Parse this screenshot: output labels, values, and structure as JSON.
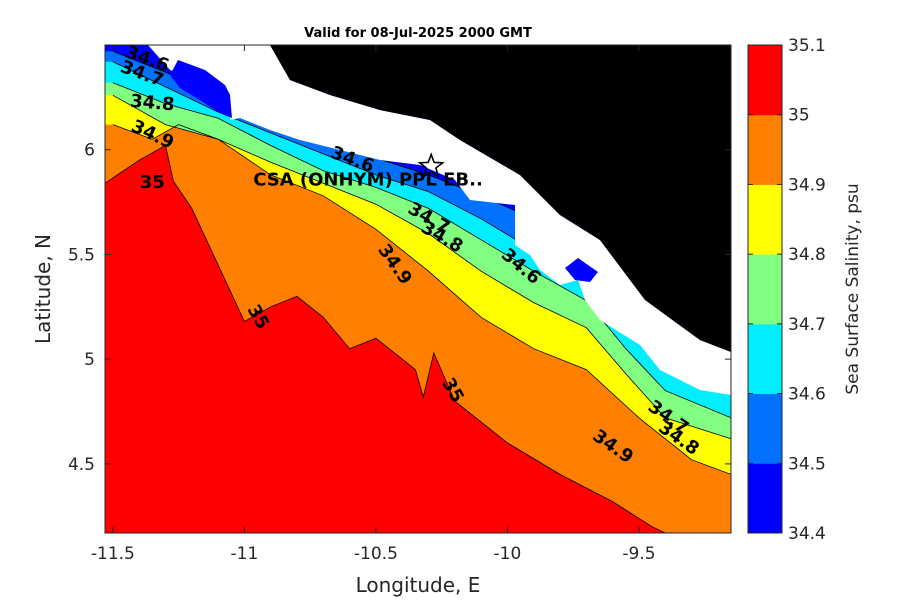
{
  "chart_data": {
    "type": "heatmap",
    "title": "Valid for 08-Jul-2025 2000 GMT",
    "xlabel": "Longitude, E",
    "ylabel": "Latitude, N",
    "xlim": [
      -11.53,
      -9.15
    ],
    "ylim": [
      4.17,
      6.5
    ],
    "x_ticks": [
      -11.5,
      -11,
      -10.5,
      -10,
      -9.5
    ],
    "x_tick_labels": [
      "-11.5",
      "-11",
      "-10.5",
      "-10",
      "-9.5"
    ],
    "y_ticks": [
      4.5,
      5,
      5.5,
      6
    ],
    "y_tick_labels": [
      "4.5",
      "5",
      "5.5",
      "6"
    ],
    "colorbar": {
      "label": "Sea Surface Salinity, psu",
      "levels": [
        34.4,
        34.5,
        34.6,
        34.7,
        34.8,
        34.9,
        35,
        35.1
      ],
      "tick_labels": [
        "34.4",
        "34.5",
        "34.6",
        "34.7",
        "34.8",
        "34.9",
        "35",
        "35.1"
      ],
      "colors": [
        "#0000ff",
        "#0072ff",
        "#00eeff",
        "#80ff80",
        "#ffff00",
        "#ff8000",
        "#ff0000"
      ]
    },
    "land_color": "#000000",
    "nodata_color": "#ffffff",
    "station": {
      "label": "CSA (ONHYM) PPL EB..",
      "lon": -10.29,
      "lat": 5.92,
      "marker": "star-icon"
    },
    "contour_lines": [
      {
        "level": 34.5,
        "points": [
          [
            -11.5,
            6.47
          ],
          [
            -11.3,
            6.37
          ],
          [
            -11.1,
            6.27
          ],
          [
            -10.9,
            6.15
          ],
          [
            -10.7,
            6.05
          ],
          [
            -10.5,
            5.96
          ],
          [
            -10.3,
            5.88
          ],
          [
            -10.1,
            5.78
          ],
          [
            -9.9,
            5.67
          ],
          [
            -9.7,
            5.56
          ],
          [
            -9.5,
            5.35
          ],
          [
            -9.3,
            5.05
          ],
          [
            -9.15,
            4.95
          ]
        ]
      },
      {
        "level": 34.6,
        "points": [
          [
            -11.5,
            6.42
          ],
          [
            -11.3,
            6.3
          ],
          [
            -11.1,
            6.18
          ],
          [
            -10.9,
            6.08
          ],
          [
            -10.7,
            5.98
          ],
          [
            -10.5,
            5.88
          ],
          [
            -10.3,
            5.8
          ],
          [
            -10.1,
            5.67
          ],
          [
            -9.9,
            5.52
          ],
          [
            -9.7,
            5.4
          ],
          [
            -9.55,
            5.2
          ],
          [
            -9.4,
            4.98
          ],
          [
            -9.15,
            4.85
          ]
        ]
      },
      {
        "level": 34.7,
        "points": [
          [
            -11.5,
            6.32
          ],
          [
            -11.3,
            6.22
          ],
          [
            -11.1,
            6.15
          ],
          [
            -10.9,
            6.02
          ],
          [
            -10.7,
            5.9
          ],
          [
            -10.5,
            5.82
          ],
          [
            -10.3,
            5.72
          ],
          [
            -10.1,
            5.57
          ],
          [
            -9.9,
            5.42
          ],
          [
            -9.7,
            5.28
          ],
          [
            -9.55,
            5.05
          ],
          [
            -9.4,
            4.85
          ],
          [
            -9.15,
            4.72
          ]
        ]
      },
      {
        "level": 34.8,
        "points": [
          [
            -11.5,
            6.26
          ],
          [
            -11.3,
            6.12
          ],
          [
            -11.1,
            6.05
          ],
          [
            -10.9,
            5.94
          ],
          [
            -10.7,
            5.84
          ],
          [
            -10.5,
            5.74
          ],
          [
            -10.3,
            5.6
          ],
          [
            -10.1,
            5.42
          ],
          [
            -9.9,
            5.27
          ],
          [
            -9.7,
            5.15
          ],
          [
            -9.55,
            4.93
          ],
          [
            -9.4,
            4.72
          ],
          [
            -9.15,
            4.62
          ]
        ]
      },
      {
        "level": 34.9,
        "points": [
          [
            -11.5,
            6.12
          ],
          [
            -11.35,
            6.05
          ],
          [
            -11.25,
            6.12
          ],
          [
            -11.1,
            6.05
          ],
          [
            -10.9,
            5.88
          ],
          [
            -10.7,
            5.78
          ],
          [
            -10.5,
            5.62
          ],
          [
            -10.3,
            5.42
          ],
          [
            -10.1,
            5.2
          ],
          [
            -9.9,
            5.05
          ],
          [
            -9.7,
            4.95
          ],
          [
            -9.5,
            4.72
          ],
          [
            -9.3,
            4.52
          ],
          [
            -9.15,
            4.45
          ]
        ]
      },
      {
        "level": 35,
        "points": [
          [
            -11.53,
            5.84
          ],
          [
            -11.4,
            5.95
          ],
          [
            -11.3,
            6.02
          ],
          [
            -11.27,
            5.85
          ],
          [
            -11.2,
            5.72
          ],
          [
            -11.1,
            5.45
          ],
          [
            -11.0,
            5.18
          ],
          [
            -10.9,
            5.25
          ],
          [
            -10.8,
            5.3
          ],
          [
            -10.7,
            5.2
          ],
          [
            -10.6,
            5.05
          ],
          [
            -10.5,
            5.1
          ],
          [
            -10.45,
            5.05
          ],
          [
            -10.35,
            4.95
          ],
          [
            -10.32,
            4.82
          ],
          [
            -10.28,
            5.03
          ],
          [
            -10.2,
            4.8
          ],
          [
            -10.0,
            4.6
          ],
          [
            -9.8,
            4.45
          ],
          [
            -9.6,
            4.32
          ],
          [
            -9.45,
            4.2
          ],
          [
            -9.4,
            4.17
          ]
        ]
      }
    ],
    "contour_labels": [
      {
        "text": "34.6",
        "lon": -11.37,
        "lat": 6.43,
        "angle": 20
      },
      {
        "text": "34.7",
        "lon": -11.39,
        "lat": 6.36,
        "angle": 20
      },
      {
        "text": "34.8",
        "lon": -11.35,
        "lat": 6.22,
        "angle": 5
      },
      {
        "text": "34.9",
        "lon": -11.35,
        "lat": 6.07,
        "angle": 25
      },
      {
        "text": "35",
        "lon": -11.35,
        "lat": 5.84,
        "angle": 0
      },
      {
        "text": "34.6",
        "lon": -10.59,
        "lat": 5.95,
        "angle": 20
      },
      {
        "text": "34.7",
        "lon": -10.3,
        "lat": 5.67,
        "angle": 30
      },
      {
        "text": "34.8",
        "lon": -10.25,
        "lat": 5.58,
        "angle": 30
      },
      {
        "text": "34.9",
        "lon": -10.43,
        "lat": 5.45,
        "angle": 55
      },
      {
        "text": "35",
        "lon": -10.95,
        "lat": 5.2,
        "angle": 60
      },
      {
        "text": "34.6",
        "lon": -9.95,
        "lat": 5.44,
        "angle": 40
      },
      {
        "text": "35",
        "lon": -10.21,
        "lat": 4.85,
        "angle": 60
      },
      {
        "text": "34.7",
        "lon": -9.39,
        "lat": 4.72,
        "angle": 35
      },
      {
        "text": "34.8",
        "lon": -9.35,
        "lat": 4.62,
        "angle": 35
      },
      {
        "text": "34.9",
        "lon": -9.6,
        "lat": 4.58,
        "angle": 35
      }
    ]
  }
}
